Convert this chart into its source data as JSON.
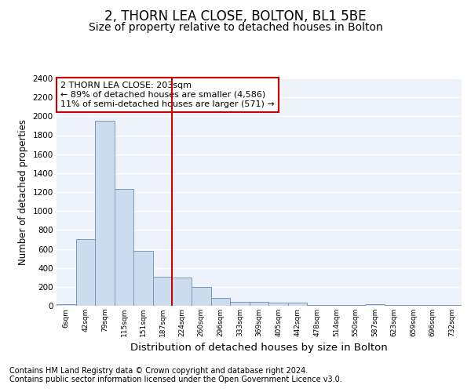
{
  "title1": "2, THORN LEA CLOSE, BOLTON, BL1 5BE",
  "title2": "Size of property relative to detached houses in Bolton",
  "xlabel": "Distribution of detached houses by size in Bolton",
  "ylabel": "Number of detached properties",
  "categories": [
    "6sqm",
    "42sqm",
    "79sqm",
    "115sqm",
    "151sqm",
    "187sqm",
    "224sqm",
    "260sqm",
    "296sqm",
    "333sqm",
    "369sqm",
    "405sqm",
    "442sqm",
    "478sqm",
    "514sqm",
    "550sqm",
    "587sqm",
    "623sqm",
    "659sqm",
    "696sqm",
    "732sqm"
  ],
  "values": [
    20,
    705,
    1950,
    1230,
    580,
    305,
    300,
    200,
    80,
    45,
    45,
    35,
    35,
    10,
    10,
    10,
    15,
    5,
    5,
    5,
    5
  ],
  "bar_color": "#ccdcee",
  "bar_edge_color": "#7799bb",
  "vline_x": 5.5,
  "vline_color": "#cc0000",
  "annotation_text": "2 THORN LEA CLOSE: 203sqm\n← 89% of detached houses are smaller (4,586)\n11% of semi-detached houses are larger (571) →",
  "annotation_box_color": "#cc0000",
  "ylim": [
    0,
    2400
  ],
  "yticks": [
    0,
    200,
    400,
    600,
    800,
    1000,
    1200,
    1400,
    1600,
    1800,
    2000,
    2200,
    2400
  ],
  "footnote1": "Contains HM Land Registry data © Crown copyright and database right 2024.",
  "footnote2": "Contains public sector information licensed under the Open Government Licence v3.0.",
  "plot_bg_color": "#eef2fb",
  "grid_color": "#ffffff",
  "title1_fontsize": 12,
  "title2_fontsize": 10,
  "xlabel_fontsize": 9.5,
  "ylabel_fontsize": 8.5,
  "footnote_fontsize": 7
}
